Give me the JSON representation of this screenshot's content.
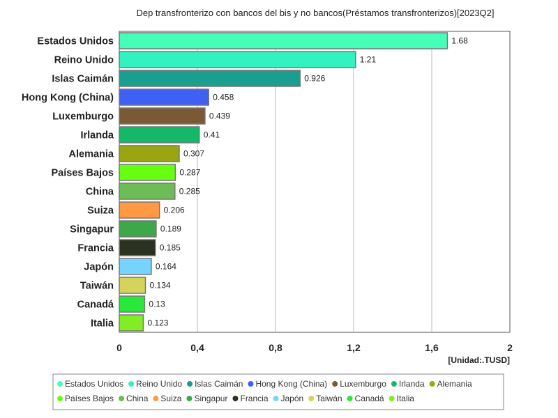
{
  "chart_data": {
    "type": "bar",
    "orientation": "horizontal",
    "title": "Dep transfronterizo con bancos del bis y no bancos(Préstamos transfronterizos)[2023Q2]",
    "unit_label": "[Unidad:.TUSD]",
    "categories": [
      "Estados Unidos",
      "Reino Unido",
      "Islas Caimán",
      "Hong Kong (China)",
      "Luxemburgo",
      "Irlanda",
      "Alemania",
      "Países Bajos",
      "China",
      "Suiza",
      "Singapur",
      "Francia",
      "Japón",
      "Taiwán",
      "Canadá",
      "Italia"
    ],
    "values": [
      1.68,
      1.21,
      0.926,
      0.458,
      0.439,
      0.41,
      0.307,
      0.287,
      0.285,
      0.206,
      0.189,
      0.185,
      0.164,
      0.134,
      0.13,
      0.123
    ],
    "value_labels": [
      "1.68",
      "1.21",
      "0.926",
      "0.458",
      "0.439",
      "0.41",
      "0.307",
      "0.287",
      "0.285",
      "0.206",
      "0.189",
      "0.185",
      "0.164",
      "0.134",
      "0.13",
      "0.123"
    ],
    "colors": [
      "#44ffb8",
      "#33f2c0",
      "#1a9e90",
      "#3f5ff5",
      "#7a5a35",
      "#14b866",
      "#9aa512",
      "#66ff11",
      "#6cbd55",
      "#ff9944",
      "#3ea848",
      "#2b321f",
      "#77d3ff",
      "#d4d45c",
      "#28e83c",
      "#80ee22"
    ],
    "xlim": [
      0,
      2
    ],
    "xticks": [
      0,
      0.4,
      0.8,
      1.2,
      1.6,
      2
    ],
    "xtick_labels": [
      "0",
      "0,4",
      "0,8",
      "1,2",
      "1,6",
      "2"
    ],
    "grid": true,
    "legend_position": "bottom"
  }
}
